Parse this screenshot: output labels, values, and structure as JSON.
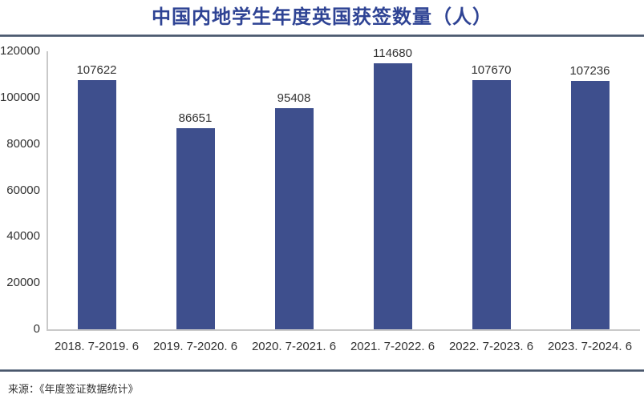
{
  "title": "中国内地学生年度英国获签数量（人）",
  "source": "来源：《年度签证数据统计》",
  "colors": {
    "bar": "#3e4f8d",
    "title_text": "#2e4394",
    "divider": "#475569",
    "axis_line": "#c9c9c9",
    "label_text": "#333333",
    "background": "#ffffff"
  },
  "chart_data": {
    "type": "bar",
    "title": "中国内地学生年度英国获签数量（人）",
    "categories": [
      "2018. 7-2019. 6",
      "2019. 7-2020. 6",
      "2020. 7-2021. 6",
      "2021. 7-2022. 6",
      "2022. 7-2023. 6",
      "2023. 7-2024. 6"
    ],
    "values": [
      107622,
      86651,
      95408,
      114680,
      107670,
      107236
    ],
    "value_labels": [
      "107622",
      "86651",
      "95408",
      "114680",
      "107670",
      "107236"
    ],
    "xlabel": "",
    "ylabel": "",
    "ylim": [
      0,
      120000
    ],
    "yticks": [
      0,
      20000,
      40000,
      60000,
      80000,
      100000,
      120000
    ],
    "grid": false,
    "legend": "none",
    "bar_color": "#3e4f8d"
  }
}
